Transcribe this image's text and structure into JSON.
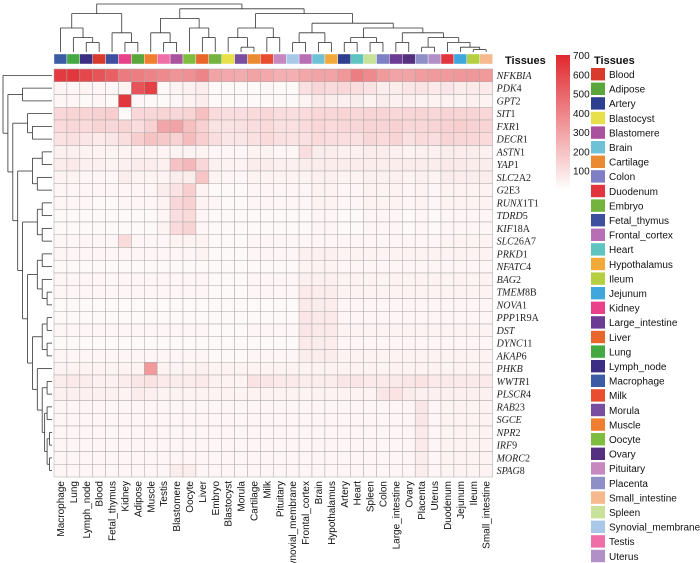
{
  "chart_data": {
    "type": "heatmap",
    "annotation_title": "Tissues",
    "legend_title": "Tissues",
    "color_scale": {
      "min": 0,
      "max": 700,
      "ticks": [
        100,
        200,
        300,
        400,
        500,
        600,
        700
      ],
      "low_color": "#ffffff",
      "high_color": "#e0282e"
    },
    "columns": [
      "Macrophage",
      "Lung",
      "Lymph_node",
      "Blood",
      "Fetal_thymus",
      "Kidney",
      "Adipose",
      "Muscle",
      "Testis",
      "Blastomere",
      "Oocyte",
      "Liver",
      "Embryo",
      "Blastocyst",
      "Morula",
      "Cartilage",
      "Milk",
      "Pituitary",
      "Synovial_membrane",
      "Frontal_cortex",
      "Brain",
      "Hypothalamus",
      "Artery",
      "Heart",
      "Spleen",
      "Colon",
      "Large_intestine",
      "Ovary",
      "Placenta",
      "Uterus",
      "Duodenum",
      "Jejunum",
      "Ileum",
      "Small_intestine"
    ],
    "rows": [
      "NFKBIA",
      "PDK4",
      "GPT2",
      "SIT1",
      "FXR1",
      "DECR1",
      "ASTN1",
      "YAP1",
      "SLC2A2",
      "G2E3",
      "RUNX1T1",
      "TDRD5",
      "KIF18A",
      "SLC26A7",
      "PRKD1",
      "NFATC4",
      "BAG2",
      "TMEM8B",
      "NOVA1",
      "PPP1R9A",
      "DST",
      "DYNC11",
      "AKAP6",
      "PHKB",
      "WWTR1",
      "PLSCR4",
      "RAB23",
      "SGCE",
      "NPR2",
      "IRF9",
      "MORC2",
      "SPAG8"
    ],
    "row_label_parts": [
      [
        "NFKBIA",
        ""
      ],
      [
        "PDK",
        "4"
      ],
      [
        "GPT",
        "2"
      ],
      [
        "SIT",
        "1"
      ],
      [
        "FXR",
        "1"
      ],
      [
        "DECR",
        "1"
      ],
      [
        "ASTN",
        "1"
      ],
      [
        "YAP",
        "1"
      ],
      [
        "SLC",
        "2A2"
      ],
      [
        "G",
        "2E3"
      ],
      [
        "RUNX",
        "1T1"
      ],
      [
        "TDRD",
        "5"
      ],
      [
        "KIF",
        "18A"
      ],
      [
        "SLC",
        "26A7"
      ],
      [
        "PRKD",
        "1"
      ],
      [
        "NFATC",
        "4"
      ],
      [
        "BAG",
        "2"
      ],
      [
        "TMEM",
        "8B"
      ],
      [
        "NOVA",
        "1"
      ],
      [
        "PPP",
        "1R9A"
      ],
      [
        "DST",
        ""
      ],
      [
        "DYNC",
        "11"
      ],
      [
        "AKAP",
        "6"
      ],
      [
        "PHKB",
        ""
      ],
      [
        "WWTR",
        "1"
      ],
      [
        "PLSCR",
        "4"
      ],
      [
        "RAB",
        "23"
      ],
      [
        "SGCE",
        ""
      ],
      [
        "NPR",
        "2"
      ],
      [
        "IRF",
        "9"
      ],
      [
        "MORC",
        "2"
      ],
      [
        "SPAG",
        "8"
      ]
    ],
    "tissue_colors": {
      "Blood": "#d83a2b",
      "Adipose": "#5aa63c",
      "Artery": "#2e3f8f",
      "Blastocyst": "#e7e04a",
      "Blastomere": "#a9529e",
      "Brain": "#6fc2d6",
      "Cartilage": "#ea8a33",
      "Colon": "#7f7fc6",
      "Duodenum": "#e2343c",
      "Embryo": "#73b33e",
      "Fetal_thymus": "#3d4f9e",
      "Frontal_cortex": "#b86eb4",
      "Heart": "#5fc4c0",
      "Hypothalamus": "#f3a83a",
      "Ileum": "#b6cf42",
      "Jejunum": "#3fa7dc",
      "Kidney": "#e8418a",
      "Large_intestine": "#6c3b93",
      "Liver": "#e8652c",
      "Lung": "#44a843",
      "Lymph_node": "#3c2e82",
      "Macrophage": "#3b5ba5",
      "Milk": "#e74d2e",
      "Morula": "#7a4e9f",
      "Muscle": "#ef7e2f",
      "Oocyte": "#7fbd3f",
      "Ovary": "#55307f",
      "Pituitary": "#c788c0",
      "Placenta": "#8f8fc8",
      "Small_intestine": "#f5b98d",
      "Spleen": "#c9e29a",
      "Synovial_membrane": "#a9c8e8",
      "Testis": "#ee6ea7",
      "Uterus": "#b190c8"
    },
    "legend_items": [
      "Blood",
      "Adipose",
      "Artery",
      "Blastocyst",
      "Blastomere",
      "Brain",
      "Cartilage",
      "Colon",
      "Duodenum",
      "Embryo",
      "Fetal_thymus",
      "Frontal_cortex",
      "Heart",
      "Hypothalamus",
      "Ileum",
      "Jejunum",
      "Kidney",
      "Large_intestine",
      "Liver",
      "Lung",
      "Lymph_node",
      "Macrophage",
      "Milk",
      "Morula",
      "Muscle",
      "Oocyte",
      "Ovary",
      "Pituitary",
      "Placenta",
      "Small_intestine",
      "Spleen",
      "Synovial_membrane",
      "Testis",
      "Uterus"
    ],
    "values": [
      [
        640,
        650,
        600,
        560,
        520,
        430,
        420,
        400,
        380,
        350,
        360,
        400,
        300,
        280,
        270,
        300,
        280,
        260,
        260,
        290,
        300,
        300,
        340,
        420,
        380,
        330,
        300,
        300,
        320,
        330,
        330,
        340,
        340,
        330
      ],
      [
        40,
        30,
        40,
        30,
        30,
        40,
        560,
        620,
        20,
        40,
        50,
        60,
        20,
        20,
        20,
        20,
        30,
        20,
        20,
        100,
        130,
        120,
        130,
        110,
        90,
        60,
        60,
        80,
        90,
        70,
        80,
        60,
        70,
        70
      ],
      [
        30,
        30,
        20,
        30,
        20,
        650,
        30,
        20,
        20,
        30,
        40,
        60,
        20,
        20,
        20,
        20,
        20,
        20,
        20,
        40,
        70,
        60,
        50,
        60,
        40,
        60,
        50,
        50,
        40,
        40,
        40,
        40,
        50,
        40
      ],
      [
        130,
        140,
        140,
        150,
        160,
        20,
        130,
        130,
        140,
        130,
        140,
        210,
        120,
        110,
        110,
        120,
        130,
        110,
        110,
        120,
        130,
        130,
        140,
        130,
        140,
        140,
        130,
        130,
        140,
        130,
        140,
        140,
        140,
        130
      ],
      [
        120,
        130,
        120,
        140,
        130,
        140,
        110,
        150,
        290,
        300,
        210,
        150,
        90,
        90,
        100,
        110,
        120,
        100,
        100,
        120,
        130,
        120,
        130,
        130,
        140,
        140,
        150,
        130,
        130,
        140,
        150,
        160,
        150,
        140
      ],
      [
        90,
        100,
        80,
        70,
        80,
        110,
        160,
        200,
        180,
        150,
        220,
        160,
        110,
        80,
        80,
        100,
        120,
        100,
        90,
        100,
        120,
        110,
        110,
        100,
        130,
        120,
        140,
        100,
        120,
        110,
        140,
        130,
        130,
        120
      ],
      [
        50,
        50,
        40,
        40,
        40,
        40,
        40,
        40,
        40,
        40,
        40,
        40,
        30,
        30,
        30,
        40,
        40,
        30,
        30,
        110,
        60,
        60,
        50,
        50,
        60,
        60,
        50,
        40,
        50,
        50,
        60,
        60,
        60,
        50
      ],
      [
        60,
        70,
        50,
        50,
        40,
        50,
        60,
        60,
        50,
        200,
        230,
        130,
        50,
        40,
        40,
        60,
        60,
        50,
        50,
        60,
        60,
        60,
        60,
        60,
        60,
        60,
        60,
        60,
        60,
        60,
        70,
        70,
        60,
        60
      ],
      [
        40,
        40,
        30,
        30,
        30,
        60,
        40,
        40,
        40,
        60,
        60,
        190,
        40,
        30,
        30,
        40,
        40,
        40,
        40,
        40,
        50,
        50,
        40,
        40,
        50,
        50,
        50,
        40,
        50,
        40,
        60,
        60,
        60,
        60
      ],
      [
        30,
        30,
        30,
        30,
        30,
        30,
        30,
        30,
        60,
        90,
        160,
        40,
        20,
        20,
        20,
        30,
        30,
        30,
        30,
        30,
        40,
        40,
        30,
        30,
        40,
        40,
        40,
        30,
        40,
        30,
        40,
        40,
        40,
        40
      ],
      [
        30,
        30,
        30,
        20,
        20,
        30,
        30,
        30,
        40,
        130,
        150,
        40,
        30,
        20,
        20,
        30,
        30,
        30,
        30,
        30,
        40,
        40,
        30,
        30,
        40,
        40,
        40,
        30,
        40,
        30,
        40,
        40,
        40,
        40
      ],
      [
        20,
        20,
        20,
        20,
        20,
        20,
        20,
        20,
        30,
        110,
        120,
        30,
        20,
        20,
        20,
        20,
        20,
        20,
        20,
        20,
        30,
        30,
        20,
        20,
        30,
        30,
        30,
        20,
        30,
        20,
        30,
        30,
        30,
        30
      ],
      [
        20,
        20,
        20,
        20,
        20,
        20,
        20,
        20,
        40,
        120,
        140,
        30,
        20,
        20,
        20,
        20,
        20,
        20,
        20,
        20,
        30,
        30,
        20,
        20,
        30,
        30,
        30,
        20,
        30,
        20,
        30,
        30,
        30,
        30
      ],
      [
        30,
        30,
        30,
        30,
        30,
        120,
        30,
        30,
        30,
        40,
        40,
        40,
        20,
        20,
        20,
        30,
        30,
        30,
        30,
        30,
        30,
        30,
        30,
        30,
        30,
        30,
        30,
        30,
        30,
        30,
        40,
        40,
        40,
        40
      ],
      [
        30,
        30,
        30,
        30,
        30,
        30,
        30,
        30,
        30,
        30,
        30,
        40,
        20,
        20,
        20,
        30,
        30,
        30,
        30,
        50,
        50,
        50,
        40,
        40,
        40,
        40,
        40,
        40,
        40,
        40,
        40,
        40,
        40,
        40
      ],
      [
        20,
        20,
        20,
        20,
        20,
        20,
        20,
        20,
        20,
        20,
        20,
        20,
        20,
        20,
        20,
        20,
        20,
        20,
        20,
        40,
        40,
        40,
        30,
        30,
        30,
        30,
        30,
        30,
        30,
        30,
        30,
        30,
        30,
        30
      ],
      [
        30,
        30,
        30,
        30,
        30,
        30,
        30,
        30,
        30,
        30,
        30,
        30,
        20,
        20,
        20,
        30,
        30,
        30,
        30,
        50,
        50,
        50,
        40,
        40,
        40,
        40,
        40,
        40,
        40,
        40,
        40,
        40,
        40,
        40
      ],
      [
        30,
        30,
        30,
        30,
        30,
        30,
        30,
        30,
        30,
        30,
        30,
        30,
        20,
        20,
        20,
        30,
        30,
        30,
        30,
        70,
        60,
        60,
        40,
        40,
        40,
        40,
        40,
        40,
        40,
        40,
        40,
        40,
        40,
        40
      ],
      [
        20,
        20,
        20,
        20,
        20,
        20,
        20,
        20,
        20,
        20,
        20,
        20,
        20,
        20,
        20,
        20,
        20,
        20,
        20,
        70,
        60,
        60,
        30,
        30,
        30,
        30,
        30,
        30,
        30,
        30,
        30,
        30,
        30,
        30
      ],
      [
        20,
        20,
        20,
        20,
        20,
        20,
        20,
        20,
        20,
        20,
        20,
        20,
        20,
        20,
        20,
        20,
        20,
        20,
        20,
        80,
        70,
        70,
        30,
        30,
        30,
        30,
        30,
        30,
        30,
        30,
        30,
        30,
        30,
        30
      ],
      [
        30,
        30,
        30,
        30,
        30,
        30,
        30,
        30,
        30,
        30,
        30,
        30,
        20,
        20,
        20,
        30,
        30,
        30,
        30,
        80,
        70,
        70,
        40,
        40,
        40,
        40,
        40,
        40,
        40,
        40,
        40,
        40,
        40,
        40
      ],
      [
        20,
        20,
        20,
        20,
        20,
        20,
        20,
        20,
        20,
        20,
        20,
        20,
        20,
        20,
        20,
        20,
        20,
        20,
        20,
        70,
        60,
        60,
        30,
        30,
        30,
        30,
        30,
        30,
        30,
        30,
        30,
        30,
        30,
        30
      ],
      [
        30,
        30,
        30,
        30,
        30,
        30,
        30,
        30,
        30,
        30,
        30,
        30,
        20,
        20,
        20,
        30,
        30,
        30,
        30,
        60,
        60,
        60,
        40,
        40,
        40,
        40,
        40,
        40,
        40,
        40,
        40,
        40,
        40,
        40
      ],
      [
        40,
        40,
        40,
        40,
        40,
        40,
        40,
        330,
        40,
        40,
        40,
        50,
        40,
        40,
        40,
        40,
        40,
        40,
        40,
        40,
        40,
        40,
        40,
        40,
        40,
        40,
        40,
        40,
        40,
        40,
        40,
        40,
        40,
        40
      ],
      [
        60,
        70,
        60,
        50,
        50,
        60,
        80,
        90,
        70,
        60,
        60,
        70,
        50,
        40,
        40,
        90,
        80,
        70,
        70,
        60,
        60,
        60,
        80,
        80,
        70,
        70,
        70,
        80,
        90,
        70,
        70,
        70,
        70,
        70
      ],
      [
        50,
        50,
        50,
        50,
        50,
        40,
        60,
        50,
        40,
        40,
        40,
        40,
        40,
        40,
        40,
        40,
        40,
        40,
        40,
        40,
        40,
        40,
        40,
        40,
        40,
        80,
        90,
        60,
        50,
        50,
        50,
        50,
        50,
        50
      ],
      [
        30,
        30,
        30,
        30,
        30,
        30,
        30,
        30,
        30,
        30,
        30,
        30,
        30,
        30,
        30,
        30,
        30,
        30,
        30,
        30,
        30,
        30,
        30,
        30,
        30,
        30,
        30,
        30,
        80,
        30,
        40,
        40,
        40,
        40
      ],
      [
        30,
        30,
        30,
        30,
        30,
        30,
        30,
        30,
        30,
        30,
        30,
        30,
        30,
        30,
        30,
        30,
        30,
        30,
        30,
        30,
        30,
        30,
        30,
        30,
        30,
        30,
        30,
        30,
        80,
        30,
        40,
        40,
        40,
        40
      ],
      [
        30,
        30,
        30,
        30,
        30,
        30,
        30,
        30,
        30,
        30,
        30,
        30,
        30,
        30,
        30,
        30,
        30,
        30,
        30,
        30,
        30,
        30,
        30,
        30,
        30,
        30,
        30,
        30,
        70,
        30,
        40,
        40,
        40,
        40
      ],
      [
        30,
        30,
        30,
        30,
        30,
        30,
        30,
        30,
        30,
        30,
        30,
        30,
        30,
        30,
        30,
        30,
        30,
        30,
        30,
        30,
        30,
        30,
        30,
        30,
        30,
        30,
        30,
        30,
        70,
        30,
        40,
        40,
        40,
        40
      ],
      [
        30,
        30,
        30,
        30,
        30,
        30,
        30,
        30,
        30,
        30,
        30,
        30,
        30,
        30,
        30,
        30,
        30,
        30,
        30,
        30,
        30,
        30,
        30,
        30,
        30,
        30,
        30,
        30,
        60,
        30,
        40,
        40,
        40,
        40
      ],
      [
        30,
        30,
        30,
        30,
        30,
        30,
        30,
        30,
        30,
        60,
        60,
        30,
        30,
        30,
        30,
        30,
        30,
        30,
        30,
        30,
        30,
        30,
        30,
        30,
        30,
        30,
        30,
        30,
        60,
        30,
        40,
        40,
        40,
        40
      ]
    ],
    "grid": true
  }
}
